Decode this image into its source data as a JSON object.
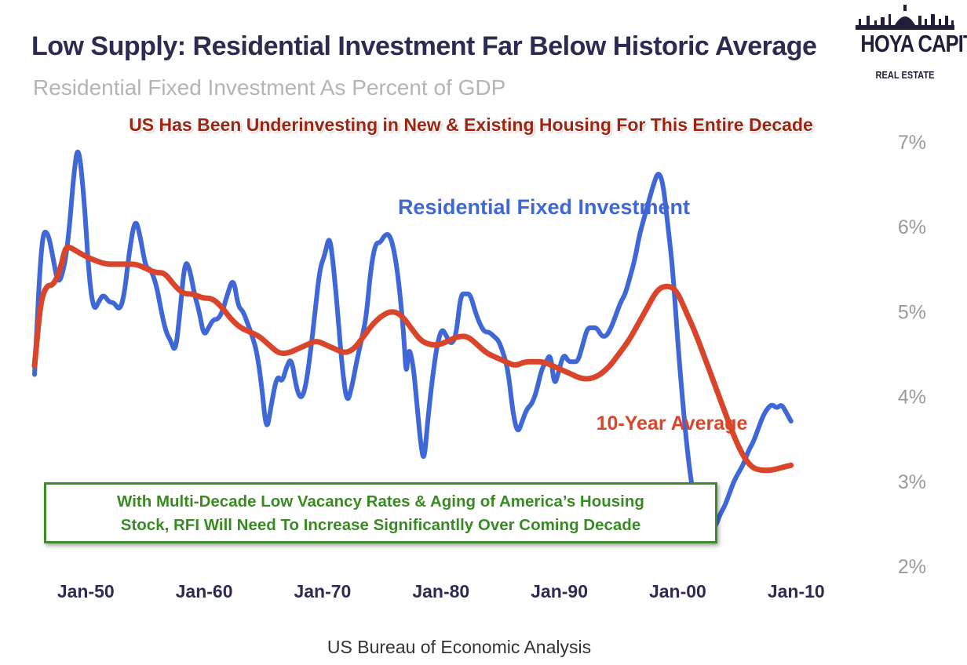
{
  "title": "Low Supply: Residential Investment Far Below Historic Average",
  "subtitle": "Residential Fixed Investment As Percent of GDP",
  "logo": {
    "name": "HOYA CAPITAL",
    "tagline": "REAL ESTATE"
  },
  "callout_top": "US Has Been Underinvesting in New & Existing Housing For This Entire Decade",
  "callout_box": {
    "line1": "With Multi-Decade Low Vacancy Rates & Aging of America’s Housing",
    "line2": "Stock, RFI Will Need To Increase Significantlly Over Coming Decade"
  },
  "source": "US Bureau of Economic Analysis",
  "colors": {
    "rfi": "#3f67d6",
    "avg": "#d9452b",
    "title": "#2c2b52",
    "subtitle": "#b4b4b4",
    "callout_red": "#9c2411",
    "callout_green": "#3a8a24"
  },
  "chart_data": {
    "type": "line",
    "title": "Residential Fixed Investment As Percent of GDP",
    "xlabel": "",
    "ylabel": "",
    "ylim": [
      2,
      7
    ],
    "xlim": [
      1947,
      2019
    ],
    "y_axis_position": "right",
    "y_ticks": [
      "7%",
      "6%",
      "5%",
      "4%",
      "3%",
      "2%"
    ],
    "y_tick_values": [
      7,
      6,
      5,
      4,
      3,
      2
    ],
    "x_ticks": [
      "Jan-50",
      "Jan-60",
      "Jan-70",
      "Jan-80",
      "Jan-90",
      "Jan-00",
      "Jan-10"
    ],
    "x_tick_values": [
      1950,
      1960,
      1970,
      1980,
      1990,
      2000,
      2010
    ],
    "grid": false,
    "series": [
      {
        "name": "Residential Fixed Investment",
        "color": "#3f67d6",
        "points": [
          [
            1947.0,
            4.25
          ],
          [
            1947.6,
            5.9
          ],
          [
            1948.1,
            5.95
          ],
          [
            1948.6,
            5.6
          ],
          [
            1949.0,
            5.3
          ],
          [
            1949.5,
            5.5
          ],
          [
            1949.9,
            5.9
          ],
          [
            1950.3,
            6.6
          ],
          [
            1950.7,
            7.0
          ],
          [
            1951.2,
            6.3
          ],
          [
            1951.6,
            5.4
          ],
          [
            1952.0,
            5.0
          ],
          [
            1952.4,
            5.1
          ],
          [
            1952.8,
            5.2
          ],
          [
            1953.3,
            5.1
          ],
          [
            1953.7,
            5.1
          ],
          [
            1954.2,
            5.0
          ],
          [
            1954.6,
            5.2
          ],
          [
            1955.0,
            5.7
          ],
          [
            1955.5,
            6.1
          ],
          [
            1955.9,
            5.9
          ],
          [
            1956.4,
            5.5
          ],
          [
            1956.8,
            5.5
          ],
          [
            1957.3,
            5.3
          ],
          [
            1957.7,
            5.0
          ],
          [
            1958.1,
            4.75
          ],
          [
            1958.5,
            4.65
          ],
          [
            1958.9,
            4.5
          ],
          [
            1959.3,
            5.0
          ],
          [
            1959.7,
            5.6
          ],
          [
            1960.1,
            5.5
          ],
          [
            1960.5,
            5.2
          ],
          [
            1960.9,
            5.0
          ],
          [
            1961.3,
            4.7
          ],
          [
            1961.7,
            4.8
          ],
          [
            1962.1,
            4.9
          ],
          [
            1962.5,
            4.9
          ],
          [
            1962.9,
            5.0
          ],
          [
            1963.3,
            5.2
          ],
          [
            1963.8,
            5.4
          ],
          [
            1964.2,
            5.05
          ],
          [
            1964.6,
            5.0
          ],
          [
            1965.0,
            4.85
          ],
          [
            1965.4,
            4.7
          ],
          [
            1965.8,
            4.5
          ],
          [
            1966.2,
            4.1
          ],
          [
            1966.6,
            3.55
          ],
          [
            1967.0,
            3.9
          ],
          [
            1967.5,
            4.25
          ],
          [
            1967.9,
            4.15
          ],
          [
            1968.3,
            4.35
          ],
          [
            1968.7,
            4.45
          ],
          [
            1969.1,
            4.1
          ],
          [
            1969.5,
            3.95
          ],
          [
            1969.9,
            4.1
          ],
          [
            1970.3,
            4.5
          ],
          [
            1970.7,
            5.0
          ],
          [
            1971.1,
            5.5
          ],
          [
            1971.5,
            5.65
          ],
          [
            1971.9,
            5.9
          ],
          [
            1972.2,
            5.6
          ],
          [
            1972.6,
            5.0
          ],
          [
            1973.0,
            4.3
          ],
          [
            1973.4,
            3.9
          ],
          [
            1973.8,
            4.1
          ],
          [
            1974.2,
            4.4
          ],
          [
            1974.6,
            4.65
          ],
          [
            1975.0,
            4.9
          ],
          [
            1975.4,
            5.5
          ],
          [
            1975.8,
            5.8
          ],
          [
            1976.2,
            5.8
          ],
          [
            1976.6,
            5.9
          ],
          [
            1977.0,
            5.9
          ],
          [
            1977.4,
            5.7
          ],
          [
            1977.8,
            5.3
          ],
          [
            1978.2,
            4.7
          ],
          [
            1978.4,
            4.2
          ],
          [
            1978.6,
            4.6
          ],
          [
            1979.0,
            4.35
          ],
          [
            1979.3,
            3.9
          ],
          [
            1979.6,
            3.45
          ],
          [
            1979.9,
            3.2
          ],
          [
            1980.2,
            3.7
          ],
          [
            1980.6,
            4.2
          ],
          [
            1981.0,
            4.6
          ],
          [
            1981.4,
            4.8
          ],
          [
            1981.8,
            4.7
          ],
          [
            1982.2,
            4.6
          ],
          [
            1982.6,
            4.7
          ],
          [
            1983.0,
            5.2
          ],
          [
            1983.4,
            5.2
          ],
          [
            1983.8,
            5.2
          ],
          [
            1984.2,
            5.0
          ],
          [
            1984.6,
            4.85
          ],
          [
            1985.0,
            4.75
          ],
          [
            1985.4,
            4.75
          ],
          [
            1985.8,
            4.7
          ],
          [
            1986.2,
            4.65
          ],
          [
            1986.6,
            4.5
          ],
          [
            1987.0,
            4.3
          ],
          [
            1987.4,
            3.8
          ],
          [
            1987.8,
            3.55
          ],
          [
            1988.2,
            3.7
          ],
          [
            1988.6,
            3.85
          ],
          [
            1989.0,
            3.9
          ],
          [
            1989.4,
            4.05
          ],
          [
            1989.8,
            4.3
          ],
          [
            1990.2,
            4.4
          ],
          [
            1990.6,
            4.5
          ],
          [
            1990.9,
            4.1
          ],
          [
            1991.3,
            4.3
          ],
          [
            1991.7,
            4.5
          ],
          [
            1992.1,
            4.4
          ],
          [
            1992.5,
            4.4
          ],
          [
            1992.9,
            4.4
          ],
          [
            1993.3,
            4.6
          ],
          [
            1993.7,
            4.8
          ],
          [
            1994.1,
            4.8
          ],
          [
            1994.5,
            4.8
          ],
          [
            1994.9,
            4.7
          ],
          [
            1995.3,
            4.7
          ],
          [
            1995.7,
            4.8
          ],
          [
            1996.1,
            4.95
          ],
          [
            1996.5,
            5.1
          ],
          [
            1996.9,
            5.2
          ],
          [
            1997.3,
            5.4
          ],
          [
            1997.7,
            5.6
          ],
          [
            1998.1,
            5.9
          ],
          [
            1998.5,
            6.1
          ],
          [
            1998.9,
            6.3
          ],
          [
            1999.3,
            6.5
          ],
          [
            1999.7,
            6.65
          ],
          [
            2000.1,
            6.5
          ],
          [
            2000.5,
            6.0
          ],
          [
            2000.9,
            5.5
          ],
          [
            2001.3,
            4.7
          ],
          [
            2001.7,
            4.0
          ],
          [
            2002.1,
            3.4
          ],
          [
            2002.5,
            2.95
          ],
          [
            2002.9,
            2.65
          ],
          [
            2003.3,
            2.7
          ],
          [
            2003.7,
            2.6
          ],
          [
            2004.1,
            2.45
          ],
          [
            2004.5,
            2.45
          ],
          [
            2004.9,
            2.6
          ],
          [
            2005.3,
            2.7
          ],
          [
            2005.7,
            2.85
          ],
          [
            2006.1,
            3.0
          ],
          [
            2006.5,
            3.1
          ],
          [
            2006.9,
            3.2
          ],
          [
            2007.3,
            3.35
          ],
          [
            2007.7,
            3.45
          ],
          [
            2008.1,
            3.6
          ],
          [
            2008.5,
            3.75
          ],
          [
            2008.9,
            3.85
          ],
          [
            2009.3,
            3.9
          ],
          [
            2009.7,
            3.85
          ],
          [
            2010.1,
            3.9
          ],
          [
            2010.5,
            3.8
          ],
          [
            2010.9,
            3.7
          ]
        ]
      },
      {
        "name": "10-Year Average",
        "color": "#d9452b",
        "points": [
          [
            1947.0,
            4.35
          ],
          [
            1947.5,
            5.1
          ],
          [
            1948.0,
            5.3
          ],
          [
            1948.6,
            5.3
          ],
          [
            1949.2,
            5.5
          ],
          [
            1949.6,
            5.75
          ],
          [
            1950.0,
            5.75
          ],
          [
            1950.6,
            5.7
          ],
          [
            1951.2,
            5.65
          ],
          [
            1952.0,
            5.6
          ],
          [
            1953.0,
            5.55
          ],
          [
            1954.0,
            5.55
          ],
          [
            1954.8,
            5.55
          ],
          [
            1955.6,
            5.55
          ],
          [
            1956.4,
            5.5
          ],
          [
            1957.2,
            5.45
          ],
          [
            1958.0,
            5.45
          ],
          [
            1958.8,
            5.3
          ],
          [
            1959.6,
            5.2
          ],
          [
            1960.4,
            5.2
          ],
          [
            1961.2,
            5.15
          ],
          [
            1962.0,
            5.15
          ],
          [
            1962.8,
            5.05
          ],
          [
            1963.6,
            4.9
          ],
          [
            1964.4,
            4.8
          ],
          [
            1965.2,
            4.75
          ],
          [
            1966.0,
            4.7
          ],
          [
            1966.8,
            4.6
          ],
          [
            1967.6,
            4.5
          ],
          [
            1968.4,
            4.5
          ],
          [
            1969.2,
            4.55
          ],
          [
            1970.0,
            4.6
          ],
          [
            1970.8,
            4.65
          ],
          [
            1971.6,
            4.6
          ],
          [
            1972.4,
            4.55
          ],
          [
            1973.2,
            4.5
          ],
          [
            1974.0,
            4.55
          ],
          [
            1974.8,
            4.7
          ],
          [
            1975.6,
            4.85
          ],
          [
            1976.4,
            4.95
          ],
          [
            1977.2,
            5.0
          ],
          [
            1978.0,
            4.95
          ],
          [
            1978.8,
            4.8
          ],
          [
            1979.6,
            4.65
          ],
          [
            1980.4,
            4.6
          ],
          [
            1981.2,
            4.6
          ],
          [
            1982.0,
            4.65
          ],
          [
            1982.8,
            4.7
          ],
          [
            1983.6,
            4.7
          ],
          [
            1984.4,
            4.6
          ],
          [
            1985.2,
            4.5
          ],
          [
            1986.0,
            4.45
          ],
          [
            1986.8,
            4.4
          ],
          [
            1987.6,
            4.35
          ],
          [
            1988.4,
            4.4
          ],
          [
            1989.2,
            4.4
          ],
          [
            1990.0,
            4.4
          ],
          [
            1990.8,
            4.35
          ],
          [
            1991.6,
            4.3
          ],
          [
            1992.4,
            4.25
          ],
          [
            1993.2,
            4.2
          ],
          [
            1994.0,
            4.2
          ],
          [
            1994.8,
            4.25
          ],
          [
            1995.6,
            4.35
          ],
          [
            1996.4,
            4.5
          ],
          [
            1997.2,
            4.65
          ],
          [
            1998.0,
            4.85
          ],
          [
            1998.8,
            5.05
          ],
          [
            1999.6,
            5.25
          ],
          [
            2000.4,
            5.3
          ],
          [
            2001.2,
            5.25
          ],
          [
            2002.0,
            5.0
          ],
          [
            2002.8,
            4.75
          ],
          [
            2003.6,
            4.45
          ],
          [
            2004.4,
            4.15
          ],
          [
            2005.2,
            3.85
          ],
          [
            2006.0,
            3.55
          ],
          [
            2006.8,
            3.3
          ],
          [
            2007.6,
            3.15
          ],
          [
            2008.4,
            3.12
          ],
          [
            2009.2,
            3.12
          ],
          [
            2010.0,
            3.15
          ],
          [
            2010.9,
            3.18
          ]
        ]
      }
    ],
    "annotations": [
      {
        "text": "Residential Fixed Investment",
        "color": "#3f67d6"
      },
      {
        "text": "10-Year Average",
        "color": "#d9452b"
      }
    ]
  }
}
